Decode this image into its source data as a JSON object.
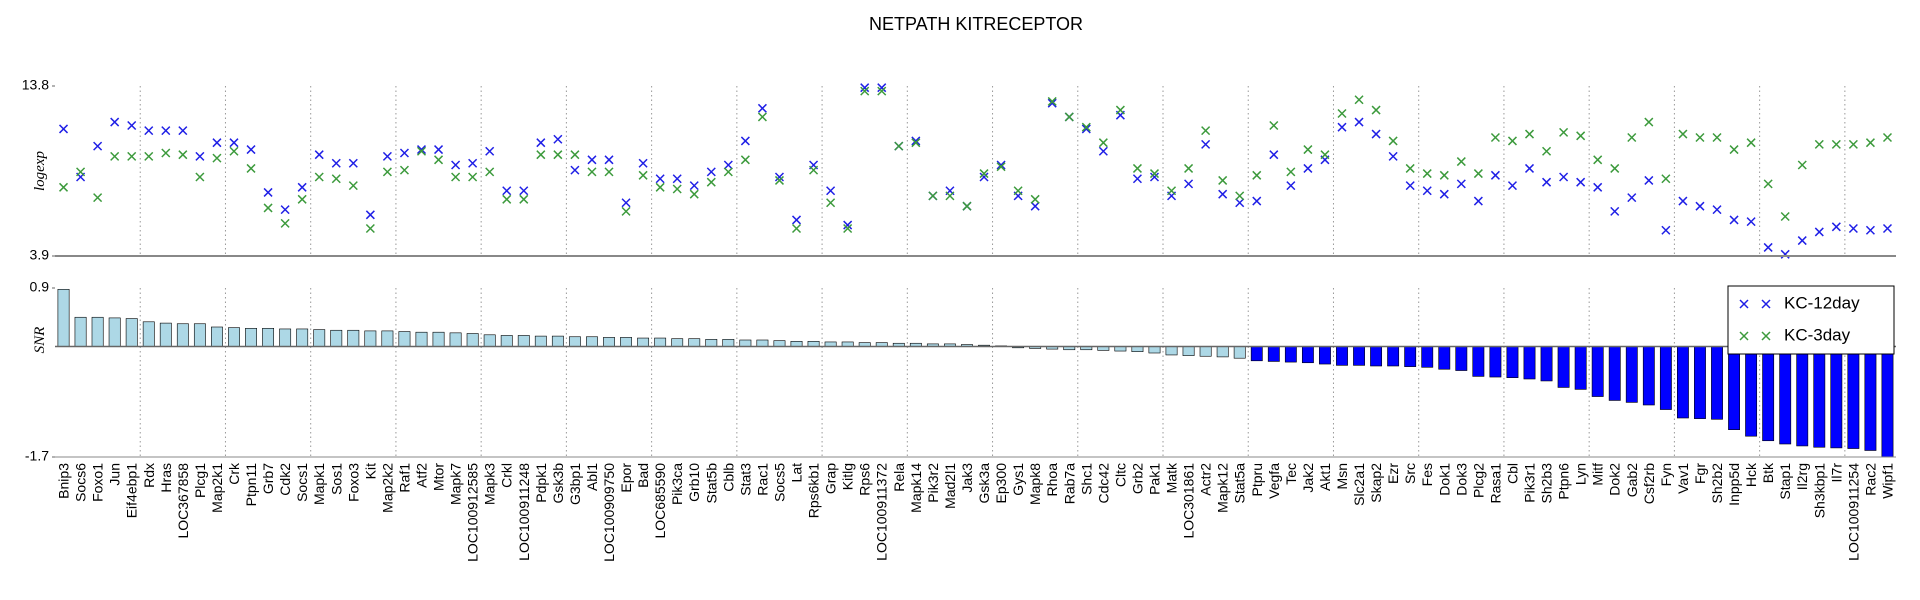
{
  "chart_data": [
    {
      "type": "scatter",
      "title": "NETPATH KITRECEPTOR",
      "ylabel": "logexp",
      "ylim": [
        3.9,
        13.8
      ],
      "yticks": [
        13.8,
        3.9
      ],
      "legend": "upper right",
      "series": [
        {
          "name": "KC-12day",
          "color": "#1f1fe6",
          "values": [
            11.3,
            8.5,
            10.3,
            11.7,
            11.5,
            11.2,
            11.2,
            11.2,
            9.7,
            10.5,
            10.5,
            10.1,
            7.6,
            6.6,
            7.9,
            9.8,
            9.3,
            9.3,
            6.3,
            9.7,
            9.9,
            10.1,
            10.1,
            9.2,
            9.3,
            10.0,
            7.7,
            7.7,
            10.5,
            10.7,
            8.9,
            9.5,
            9.5,
            7.0,
            9.3,
            8.4,
            8.4,
            8.0,
            8.8,
            9.2,
            10.6,
            12.5,
            8.5,
            6.0,
            9.2,
            7.7,
            5.7,
            13.7,
            13.7,
            10.3,
            10.6,
            7.4,
            7.7,
            6.8,
            8.5,
            9.2,
            7.4,
            6.8,
            12.8,
            12.0,
            11.3,
            10.0,
            12.1,
            8.4,
            8.5,
            7.4,
            8.1,
            10.4,
            7.5,
            7.0,
            7.1,
            9.8,
            8.0,
            9.0,
            9.5,
            11.4,
            11.7,
            11.0,
            9.7,
            8.0,
            7.7,
            7.5,
            8.1,
            7.1,
            8.6,
            8.0,
            9.0,
            8.2,
            8.5,
            8.2,
            7.9,
            6.5,
            7.3,
            8.3,
            5.4,
            7.1,
            6.8,
            6.6,
            6.0,
            5.9,
            4.4,
            4.0,
            4.8,
            5.3,
            5.6,
            5.5,
            5.4,
            5.5
          ]
        },
        {
          "name": "KC-3day",
          "color": "#3c9a3c",
          "values": [
            7.9,
            8.8,
            7.3,
            9.7,
            9.7,
            9.7,
            9.9,
            9.8,
            8.5,
            9.6,
            10.0,
            9.0,
            6.7,
            5.8,
            7.2,
            8.5,
            8.4,
            8.0,
            5.5,
            8.8,
            8.9,
            10.0,
            9.5,
            8.5,
            8.5,
            8.8,
            7.2,
            7.2,
            9.8,
            9.8,
            9.8,
            8.8,
            8.8,
            6.5,
            8.6,
            7.9,
            7.8,
            7.5,
            8.2,
            8.8,
            9.5,
            12.0,
            8.3,
            5.5,
            8.9,
            7.0,
            5.5,
            13.5,
            13.5,
            10.3,
            10.5,
            7.4,
            7.4,
            6.8,
            8.7,
            9.1,
            7.7,
            7.2,
            12.9,
            12.0,
            11.4,
            10.5,
            12.4,
            9.0,
            8.7,
            7.7,
            9.0,
            11.2,
            8.3,
            7.4,
            8.6,
            11.5,
            8.8,
            10.1,
            9.8,
            12.2,
            13.0,
            12.4,
            10.6,
            9.0,
            8.7,
            8.6,
            9.4,
            8.7,
            10.8,
            10.6,
            11.0,
            10.0,
            11.1,
            10.9,
            9.5,
            9.0,
            10.8,
            11.7,
            8.4,
            11.0,
            10.8,
            10.8,
            10.1,
            10.5,
            8.1,
            6.2,
            9.2,
            10.4,
            10.4,
            10.4,
            10.5,
            10.8
          ]
        }
      ]
    },
    {
      "type": "bar",
      "ylabel": "SNR",
      "ylim": [
        -1.7,
        0.9
      ],
      "yticks": [
        0.9,
        -1.7
      ],
      "categories": [
        "Bnip3",
        "Socs6",
        "Foxo1",
        "Jun",
        "Eif4ebp1",
        "Rdx",
        "Hras",
        "LOC367858",
        "Plcg1",
        "Map2k1",
        "Crk",
        "Ptpn11",
        "Grb7",
        "Cdk2",
        "Socs1",
        "Mapk1",
        "Sos1",
        "Foxo3",
        "Kit",
        "Map2k2",
        "Raf1",
        "Atf2",
        "Mtor",
        "Mapk7",
        "LOC100912585",
        "Mapk3",
        "Crkl",
        "LOC100911248",
        "Pdpk1",
        "Gsk3b",
        "G3bp1",
        "Abl1",
        "LOC100909750",
        "Epor",
        "Bad",
        "LOC685590",
        "Pik3ca",
        "Grb10",
        "Stat5b",
        "Cblb",
        "Stat3",
        "Rac1",
        "Socs5",
        "Lat",
        "Rps6kb1",
        "Grap",
        "Kitlg",
        "Rps6",
        "LOC100911372",
        "Rela",
        "Mapk14",
        "Pik3r2",
        "Mad2l1",
        "Jak3",
        "Gsk3a",
        "Ep300",
        "Gys1",
        "Mapk8",
        "Rhoa",
        "Rab7a",
        "Shc1",
        "Cdc42",
        "Cltc",
        "Grb2",
        "Pak1",
        "Matk",
        "LOC301861",
        "Actr2",
        "Mapk12",
        "Stat5a",
        "Ptpru",
        "Vegfa",
        "Tec",
        "Jak2",
        "Akt1",
        "Msn",
        "Slc2a1",
        "Skap2",
        "Ezr",
        "Src",
        "Fes",
        "Dok1",
        "Dok3",
        "Plcg2",
        "Rasa1",
        "Cbl",
        "Pik3r1",
        "Sh2b3",
        "Ptpn6",
        "Lyn",
        "Mitf",
        "Dok2",
        "Gab2",
        "Csf2rb",
        "Fyn",
        "Vav1",
        "Fgr",
        "Sh2b2",
        "Inpp5d",
        "Hck",
        "Btk",
        "Stap1",
        "Il2rg",
        "Sh3kbp1",
        "Il7r",
        "LOC100911254",
        "Rac2",
        "Wipf1"
      ],
      "values": [
        0.88,
        0.45,
        0.45,
        0.44,
        0.43,
        0.38,
        0.36,
        0.35,
        0.35,
        0.3,
        0.29,
        0.28,
        0.28,
        0.27,
        0.27,
        0.26,
        0.25,
        0.25,
        0.24,
        0.24,
        0.23,
        0.22,
        0.22,
        0.21,
        0.2,
        0.18,
        0.17,
        0.17,
        0.16,
        0.16,
        0.15,
        0.15,
        0.14,
        0.14,
        0.13,
        0.13,
        0.12,
        0.12,
        0.11,
        0.11,
        0.1,
        0.1,
        0.09,
        0.08,
        0.08,
        0.07,
        0.07,
        0.06,
        0.06,
        0.05,
        0.05,
        0.04,
        0.04,
        0.03,
        0.02,
        0.01,
        -0.02,
        -0.03,
        -0.04,
        -0.05,
        -0.05,
        -0.06,
        -0.07,
        -0.08,
        -0.1,
        -0.13,
        -0.14,
        -0.15,
        -0.16,
        -0.18,
        -0.22,
        -0.23,
        -0.24,
        -0.25,
        -0.27,
        -0.29,
        -0.29,
        -0.3,
        -0.3,
        -0.31,
        -0.32,
        -0.35,
        -0.37,
        -0.46,
        -0.47,
        -0.48,
        -0.5,
        -0.53,
        -0.63,
        -0.66,
        -0.77,
        -0.83,
        -0.86,
        -0.9,
        -0.97,
        -1.1,
        -1.11,
        -1.12,
        -1.28,
        -1.38,
        -1.45,
        -1.5,
        -1.53,
        -1.55,
        -1.56,
        -1.57,
        -1.6,
        -1.7
      ],
      "colors": [
        "#add8e6",
        "#add8e6",
        "#add8e6",
        "#add8e6",
        "#add8e6",
        "#add8e6",
        "#add8e6",
        "#add8e6",
        "#add8e6",
        "#add8e6",
        "#add8e6",
        "#add8e6",
        "#add8e6",
        "#add8e6",
        "#add8e6",
        "#add8e6",
        "#add8e6",
        "#add8e6",
        "#add8e6",
        "#add8e6",
        "#add8e6",
        "#add8e6",
        "#add8e6",
        "#add8e6",
        "#add8e6",
        "#add8e6",
        "#add8e6",
        "#add8e6",
        "#add8e6",
        "#add8e6",
        "#add8e6",
        "#add8e6",
        "#add8e6",
        "#add8e6",
        "#add8e6",
        "#add8e6",
        "#add8e6",
        "#add8e6",
        "#add8e6",
        "#add8e6",
        "#add8e6",
        "#add8e6",
        "#add8e6",
        "#add8e6",
        "#add8e6",
        "#add8e6",
        "#add8e6",
        "#add8e6",
        "#add8e6",
        "#add8e6",
        "#add8e6",
        "#add8e6",
        "#add8e6",
        "#add8e6",
        "#add8e6",
        "#add8e6",
        "#add8e6",
        "#add8e6",
        "#add8e6",
        "#add8e6",
        "#add8e6",
        "#add8e6",
        "#add8e6",
        "#add8e6",
        "#add8e6",
        "#add8e6",
        "#add8e6",
        "#add8e6",
        "#add8e6",
        "#add8e6",
        "#0000ff",
        "#0000ff",
        "#0000ff",
        "#0000ff",
        "#0000ff",
        "#0000ff",
        "#0000ff",
        "#0000ff",
        "#0000ff",
        "#0000ff",
        "#0000ff",
        "#0000ff",
        "#0000ff",
        "#0000ff",
        "#0000ff",
        "#0000ff",
        "#0000ff",
        "#0000ff",
        "#0000ff",
        "#0000ff",
        "#0000ff",
        "#0000ff",
        "#0000ff",
        "#0000ff",
        "#0000ff",
        "#0000ff",
        "#0000ff",
        "#0000ff",
        "#0000ff",
        "#0000ff",
        "#0000ff",
        "#0000ff",
        "#0000ff",
        "#0000ff",
        "#0000ff",
        "#0000ff",
        "#0000ff",
        "#0000ff"
      ]
    }
  ]
}
